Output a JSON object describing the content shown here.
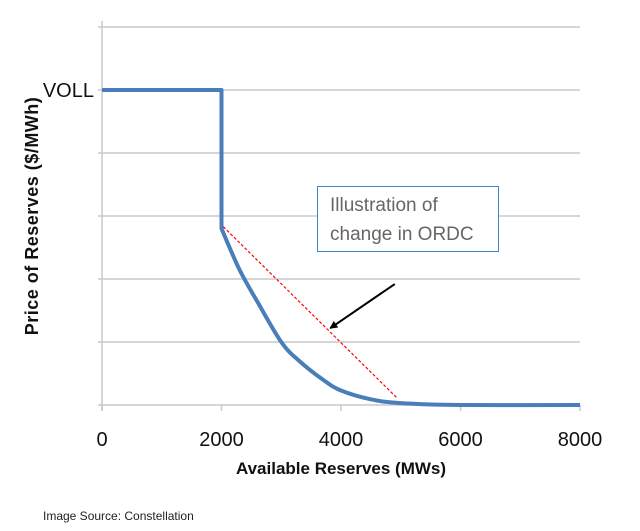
{
  "chart_data": {
    "type": "line",
    "title": "",
    "xlabel": "Available Reserves (MWs)",
    "ylabel": "Price of Reserves ($/MWh)",
    "xlim": [
      0,
      8000
    ],
    "x_ticks": [
      "0",
      "2000",
      "4000",
      "6000",
      "8000"
    ],
    "y_gridlines": 6,
    "y_tick_labels": [
      {
        "value": 5,
        "label": "VOLL"
      }
    ],
    "grid": true,
    "series": [
      {
        "style": "solid",
        "color": "#4a7ebb",
        "points": [
          [
            0,
            5
          ],
          [
            2000,
            5
          ],
          [
            2000,
            2.8
          ],
          [
            2300,
            2.15
          ],
          [
            2600,
            1.64
          ],
          [
            3000,
            1.0
          ],
          [
            3300,
            0.7
          ],
          [
            3700,
            0.4
          ],
          [
            4000,
            0.23
          ],
          [
            4500,
            0.09
          ],
          [
            5000,
            0.03
          ],
          [
            6000,
            0
          ],
          [
            8000,
            0
          ]
        ]
      },
      {
        "style": "dashed",
        "color": "#ff0000",
        "points": [
          [
            2030,
            2.83
          ],
          [
            4940,
            0.11
          ]
        ]
      }
    ],
    "annotations": [
      {
        "text_lines": [
          "Illustration of",
          "change in ORDC"
        ],
        "arrow_from": [
          4900,
          1.92
        ],
        "arrow_to": [
          3820,
          1.22
        ]
      }
    ]
  },
  "source": "Image Source: Constellation"
}
